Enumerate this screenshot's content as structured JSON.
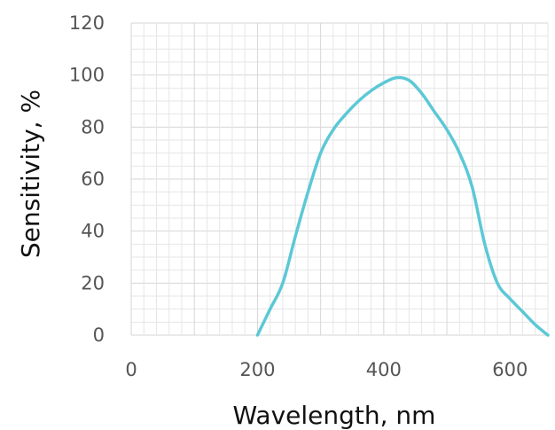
{
  "chart_data": {
    "type": "line",
    "title": "",
    "xlabel": "Wavelength, nm",
    "ylabel": "Sensitivity, %",
    "xlim": [
      0,
      660
    ],
    "ylim": [
      0,
      120
    ],
    "x_ticks": [
      0,
      200,
      400,
      600
    ],
    "y_ticks": [
      0,
      20,
      40,
      60,
      80,
      100,
      120
    ],
    "grid": true,
    "legend": "none",
    "colors": {
      "series": "#5cc8d6",
      "grid": "#e6e6e6",
      "text": "#555555"
    },
    "series": [
      {
        "x": [
          200,
          220,
          240,
          260,
          280,
          300,
          320,
          340,
          360,
          380,
          400,
          420,
          440,
          460,
          480,
          500,
          520,
          540,
          560,
          580,
          600,
          620,
          640,
          660
        ],
        "values": [
          0,
          10,
          20,
          38,
          55,
          70,
          79,
          85,
          90,
          94,
          97,
          99,
          98,
          93,
          86,
          79,
          70,
          57,
          35,
          20,
          14,
          9,
          4,
          0
        ]
      }
    ]
  }
}
